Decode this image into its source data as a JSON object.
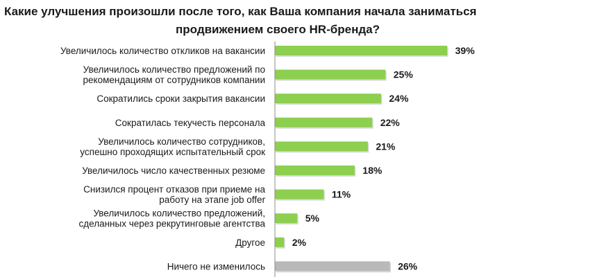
{
  "title_line1": "Какие улучшения произошли после того, как Ваша компания начала заниматься",
  "title_line2": "продвижением своего HR-бренда?",
  "colors": {
    "green": "#8dcf4f",
    "gray": "#b9b9b9",
    "axis": "#8a8a8a"
  },
  "chart_data": {
    "type": "bar",
    "orientation": "horizontal",
    "title": "Какие улучшения произошли после того, как Ваша компания начала заниматься продвижением своего HR-бренда?",
    "categories": [
      [
        "Увеличилось количество откликов на вакансии"
      ],
      [
        "Увеличилось количество предложений по",
        "рекомендациям от сотрудников компании"
      ],
      [
        "Сократились сроки закрытия вакансии"
      ],
      [
        "Сократилась текучесть персонала"
      ],
      [
        "Увеличилось количество сотрудников,",
        "успешно проходящих испытательный срок"
      ],
      [
        "Увеличилось число качественных резюме"
      ],
      [
        "Снизился процент отказов при приеме на",
        "работу на этапе job offer"
      ],
      [
        "Увеличилось количество предложений,",
        "сделанных через рекрутинговые агентства"
      ],
      [
        "Другое"
      ],
      [
        "Ничего не изменилось"
      ]
    ],
    "values": [
      39,
      25,
      24,
      22,
      21,
      18,
      11,
      5,
      2,
      26
    ],
    "value_labels": [
      "39%",
      "25%",
      "24%",
      "22%",
      "21%",
      "18%",
      "11%",
      "5%",
      "2%",
      "26%"
    ],
    "bar_colors": [
      "green",
      "green",
      "green",
      "green",
      "green",
      "green",
      "green",
      "green",
      "green",
      "gray"
    ],
    "xlim": [
      0,
      100
    ]
  }
}
